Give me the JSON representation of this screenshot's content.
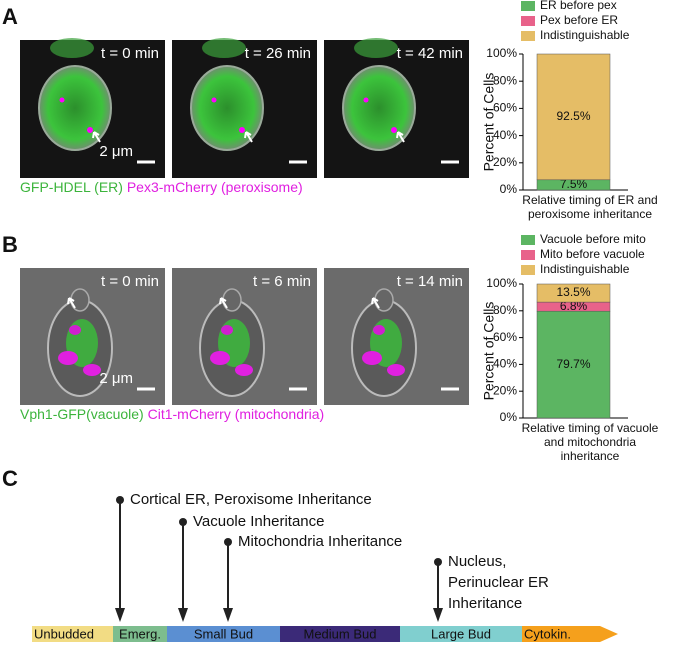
{
  "panels": {
    "A": {
      "label": "A",
      "timestamps": [
        "t = 0 min",
        "t = 26 min",
        "t = 42 min"
      ],
      "scale": "2 μm",
      "caption": [
        "GFP-HDEL (ER)",
        "Pex3-mCherry (peroxisome)"
      ]
    },
    "B": {
      "label": "B",
      "timestamps": [
        "t = 0 min",
        "t = 6 min",
        "t = 14 min"
      ],
      "scale": "2 μm",
      "caption": [
        "Vph1-GFP(vacuole)",
        "Cit1-mCherry (mitochondria)"
      ]
    }
  },
  "chart_data": [
    {
      "type": "bar",
      "stacked": true,
      "ylabel": "Percent of Cells",
      "xlabel": [
        "Relative timing of ER and",
        "peroxisome inheritance"
      ],
      "categories": [
        null
      ],
      "series": [
        {
          "name": "ER before pex",
          "color": "#5cb562",
          "values": [
            7.5
          ],
          "value_labels": [
            "7.5%"
          ]
        },
        {
          "name": "Pex before ER",
          "color": "#e8628a",
          "values": [
            0
          ]
        },
        {
          "name": "Indistinguishable",
          "color": "#e5bd66",
          "values": [
            92.5
          ],
          "value_labels": [
            "92.5%"
          ]
        }
      ],
      "ylim": [
        0,
        100
      ],
      "yticks": [
        {
          "value": 0,
          "label": "0%"
        },
        {
          "value": 20,
          "label": "20%"
        },
        {
          "value": 40,
          "label": "40%"
        },
        {
          "value": 60,
          "label": "60%"
        },
        {
          "value": 80,
          "label": "80%"
        },
        {
          "value": 100,
          "label": "100%"
        }
      ]
    },
    {
      "type": "bar",
      "stacked": true,
      "ylabel": "Percent of Cells",
      "xlabel": [
        "Relative timing of vacuole",
        "and mitochondria",
        "inheritance"
      ],
      "categories": [
        null
      ],
      "series": [
        {
          "name": "Vacuole before mito",
          "color": "#5cb562",
          "values": [
            79.7
          ],
          "value_labels": [
            "79.7%"
          ]
        },
        {
          "name": "Mito before vacuole",
          "color": "#e8628a",
          "values": [
            6.8
          ],
          "value_labels": [
            "6.8%"
          ]
        },
        {
          "name": "Indistinguishable",
          "color": "#e5bd66",
          "values": [
            13.5
          ],
          "value_labels": [
            "13.5%"
          ]
        }
      ],
      "ylim": [
        0,
        100
      ],
      "yticks": [
        {
          "value": 0,
          "label": "0%"
        },
        {
          "value": 20,
          "label": "20%"
        },
        {
          "value": 40,
          "label": "40%"
        },
        {
          "value": 60,
          "label": "60%"
        },
        {
          "value": 80,
          "label": "80%"
        },
        {
          "value": 100,
          "label": "100%"
        }
      ]
    }
  ],
  "timeline": {
    "label": "C",
    "stages": [
      {
        "name": "Unbudded",
        "color": "#f2dc84"
      },
      {
        "name": "Emerg.",
        "color": "#7dbd8e"
      },
      {
        "name": "Small Bud",
        "color": "#5b8fd2"
      },
      {
        "name": "Medium Bud",
        "color": "#3b2a78"
      },
      {
        "name": "Large Bud",
        "color": "#80cfcf"
      },
      {
        "name": "Cytokin.",
        "color": "#f5a01c"
      }
    ],
    "events": [
      {
        "lines": [
          "Cortical ER, Peroxisome Inheritance"
        ]
      },
      {
        "lines": [
          "Vacuole Inheritance"
        ]
      },
      {
        "lines": [
          "Mitochondria Inheritance"
        ]
      },
      {
        "lines": [
          "Nucleus,",
          "Perinuclear ER",
          "Inheritance"
        ]
      }
    ]
  }
}
